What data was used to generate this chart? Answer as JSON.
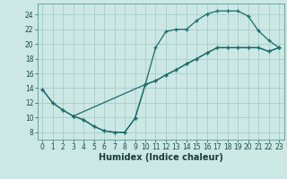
{
  "title": "",
  "xlabel": "Humidex (Indice chaleur)",
  "ylabel": "",
  "bg_color": "#cce8e4",
  "grid_color": "#aaccca",
  "line_color": "#1a6b6b",
  "xlim": [
    -0.5,
    23.5
  ],
  "ylim": [
    7,
    25.5
  ],
  "xticks": [
    0,
    1,
    2,
    3,
    4,
    5,
    6,
    7,
    8,
    9,
    10,
    11,
    12,
    13,
    14,
    15,
    16,
    17,
    18,
    19,
    20,
    21,
    22,
    23
  ],
  "yticks": [
    8,
    10,
    12,
    14,
    16,
    18,
    20,
    22,
    24
  ],
  "line1_x": [
    0,
    1,
    2,
    3,
    4,
    5,
    6,
    7,
    8,
    9,
    10,
    11,
    12,
    13,
    14,
    15,
    16,
    17,
    18,
    19,
    20,
    21,
    22,
    23
  ],
  "line1_y": [
    13.8,
    12.0,
    11.0,
    10.2,
    9.7,
    8.8,
    8.2,
    8.0,
    8.0,
    9.9,
    14.5,
    19.5,
    21.7,
    22.0,
    22.0,
    23.2,
    24.1,
    24.5,
    24.5,
    24.5,
    23.8,
    21.8,
    20.5,
    19.5
  ],
  "line2_x": [
    0,
    1,
    2,
    3,
    10,
    11,
    12,
    13,
    14,
    15,
    16,
    17,
    18,
    19,
    20,
    21,
    22,
    23
  ],
  "line2_y": [
    13.8,
    12.0,
    11.0,
    10.2,
    14.5,
    15.0,
    15.8,
    16.5,
    17.3,
    18.0,
    18.8,
    19.5,
    19.5,
    19.5,
    19.5,
    19.5,
    19.0,
    19.5
  ],
  "line3_x": [
    3,
    4,
    5,
    6,
    7,
    8,
    9,
    10,
    11,
    12,
    13,
    14,
    15,
    16,
    17,
    18,
    19,
    20,
    21,
    22,
    23
  ],
  "line3_y": [
    10.2,
    9.7,
    8.8,
    8.2,
    8.0,
    8.0,
    9.9,
    14.5,
    15.0,
    15.8,
    16.5,
    17.3,
    18.0,
    18.8,
    19.5,
    19.5,
    19.5,
    19.5,
    19.5,
    19.0,
    19.5
  ]
}
